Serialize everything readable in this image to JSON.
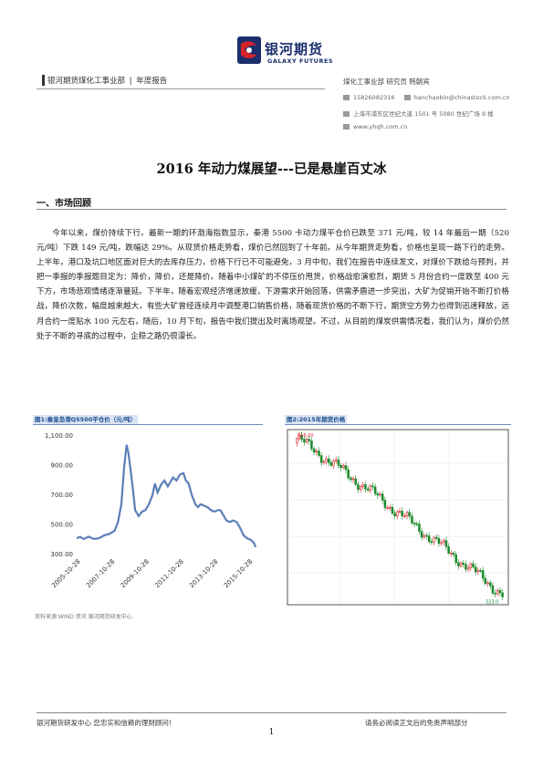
{
  "header": {
    "logo_cn": "银河期货",
    "logo_en": "GALAXY FUTURES",
    "dept": "银河期货煤化工事业部",
    "report_type": "年度报告",
    "author_line": "煤化工事业部   研究员   韩朝宾",
    "phone": "15826082316",
    "email": "hanchaobin@chinastock.com.cn",
    "address": "上海市浦东区世纪大道 1501 号 5080 世纪广场 9 楼",
    "website": "www.yhqh.com.cn"
  },
  "title": "2016 年动力煤展望---已是悬崖百丈冰",
  "section1": "一、市场回顾",
  "paragraph": "今年以来，煤价持续下行。最新一期的环渤海指数显示，秦港 5500 卡动力煤平仓价已跌至 371 元/吨，较 14 年最后一期（520 元/吨）下跌 149 元/吨，跌幅达 29%。从现货价格走势看，煤价已然回到了十年前。从今年期货走势看，价格也呈现一路下行的走势。上半年，港口及坑口地区面对巨大的去库存压力，价格下行已不可能避免，3 月中旬，我们在报告中连续发文，对煤价下跌给与预判，并把一季报的季报题目定为：降价，降价，还是降价。随着中小煤矿的不停压价甩货，价格战愈演愈烈，期货 5 月份合约一度跌至 400 元下方，市场悲观情绪逐渐蔓延。下半年，随着宏观经济增速放缓，下游需求开始回落，供需矛盾进一步突出，大矿为促销开始不断打价格战，降价次数，幅度越来越大，有些大矿曾经连续月中调整港口销售价格，随着现货价格的不断下行，期货空方势力也得到迅速释放，远月合约一度贴水 100 元左右，随后，10 月下旬，报告中我们提出及时离场观望。不过，从目前的煤炭供需情况看，我们认为，煤价仍然处于不断的寻底的过程中，企稳之路仍很漫长。",
  "figure1_title": "图1:秦皇岛港Q5500平仓价（元/吨）",
  "figure2_title": "图2:2015年期货价格",
  "source": "资料来源:WIND 资讯   银河期货研发中心",
  "footer_left": "银河期货研发中心  您忠实和信赖的理财顾问！",
  "footer_right": "请务必阅读正文后的免责声明部分",
  "page_number": "1",
  "colors": {
    "line": "#5b7fb8",
    "up": "#d8222a",
    "down": "#1a8a2a",
    "brand": "#1a2f6b"
  },
  "chart_data": [
    {
      "type": "line",
      "title": "图1:秦皇岛港Q5500平仓价（元/吨）",
      "x_tick_labels": [
        "2005-10-28",
        "2007-10-28",
        "2009-10-28",
        "2011-10-28",
        "2013-10-28",
        "2015-10-28"
      ],
      "y_tick_labels": [
        "300.00",
        "500.00",
        "700.00",
        "900.00",
        "1,100.00"
      ],
      "ylim": [
        300,
        1100
      ],
      "xlim": [
        2005.6,
        2016.1
      ],
      "x_unit": "year",
      "grid": false,
      "series": [
        {
          "x": [
            2005.6,
            2005.8,
            2006.0,
            2006.3,
            2006.6,
            2006.9,
            2007.2,
            2007.5,
            2007.8,
            2008.0,
            2008.2,
            2008.35,
            2008.5,
            2008.6,
            2008.7,
            2008.85,
            2009.0,
            2009.2,
            2009.4,
            2009.6,
            2009.8,
            2010.0,
            2010.15,
            2010.3,
            2010.5,
            2010.7,
            2010.9,
            2011.0,
            2011.2,
            2011.4,
            2011.6,
            2011.8,
            2011.95,
            2012.1,
            2012.3,
            2012.5,
            2012.65,
            2012.8,
            2013.0,
            2013.2,
            2013.4,
            2013.6,
            2013.8,
            2013.95,
            2014.1,
            2014.3,
            2014.5,
            2014.7,
            2014.9,
            2015.1,
            2015.3,
            2015.5,
            2015.7,
            2015.9,
            2016.0
          ],
          "y": [
            410,
            420,
            405,
            420,
            405,
            410,
            430,
            440,
            460,
            520,
            640,
            880,
            1040,
            990,
            900,
            760,
            600,
            560,
            590,
            600,
            640,
            700,
            780,
            720,
            770,
            800,
            760,
            780,
            820,
            800,
            840,
            850,
            800,
            780,
            700,
            640,
            620,
            640,
            630,
            620,
            600,
            590,
            600,
            600,
            570,
            530,
            520,
            530,
            520,
            480,
            430,
            410,
            400,
            380,
            350
          ]
        }
      ]
    },
    {
      "type": "candlestick",
      "title": "图2:2015年期货价格",
      "annotations": [
        "616.00",
        "323.0"
      ],
      "trend": {
        "start": 616,
        "end": 323,
        "points": 85
      }
    }
  ]
}
